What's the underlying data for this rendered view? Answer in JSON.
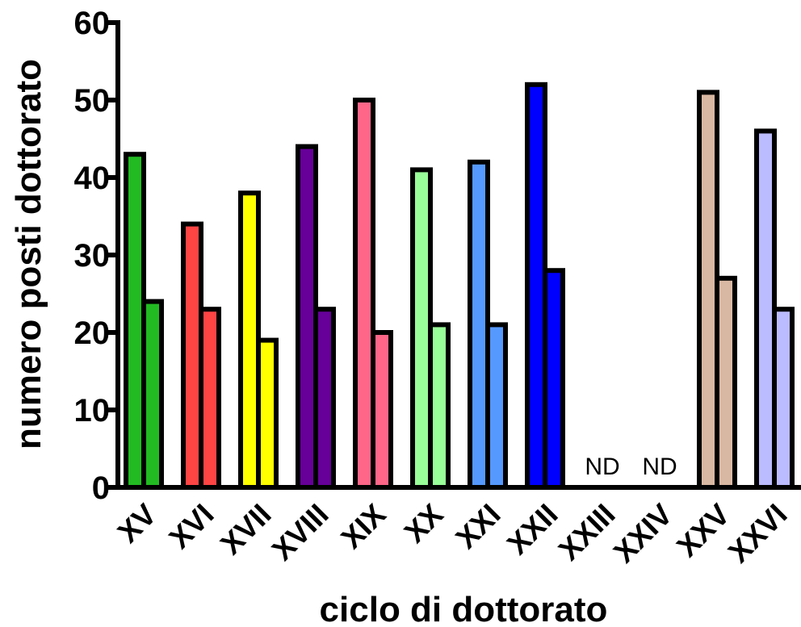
{
  "chart_data": {
    "type": "bar",
    "xlabel": "ciclo di dottorato",
    "ylabel": "numero posti dottorato",
    "ylim": [
      0,
      60
    ],
    "yticks": [
      0,
      10,
      20,
      30,
      40,
      50,
      60
    ],
    "grid": false,
    "categories": [
      "XV",
      "XVI",
      "XVII",
      "XVIII",
      "XIX",
      "XX",
      "XXI",
      "XXII",
      "XXIII",
      "XXIV",
      "XXV",
      "XXVI"
    ],
    "colors": [
      "#22bb22",
      "#ff4444",
      "#ffff00",
      "#660099",
      "#ff6688",
      "#99ff99",
      "#5599ff",
      "#0000ff",
      "#ffffff",
      "#ffffff",
      "#d9b8a3",
      "#bbbbff"
    ],
    "series": [
      {
        "values": [
          43,
          34,
          38,
          44,
          50,
          41,
          42,
          52,
          null,
          null,
          51,
          46
        ]
      },
      {
        "values": [
          24,
          23,
          19,
          23,
          20,
          21,
          21,
          28,
          null,
          null,
          27,
          23
        ]
      }
    ],
    "annotations": [
      {
        "category": "XXIII",
        "text": "ND"
      },
      {
        "category": "XXIV",
        "text": "ND"
      }
    ]
  }
}
